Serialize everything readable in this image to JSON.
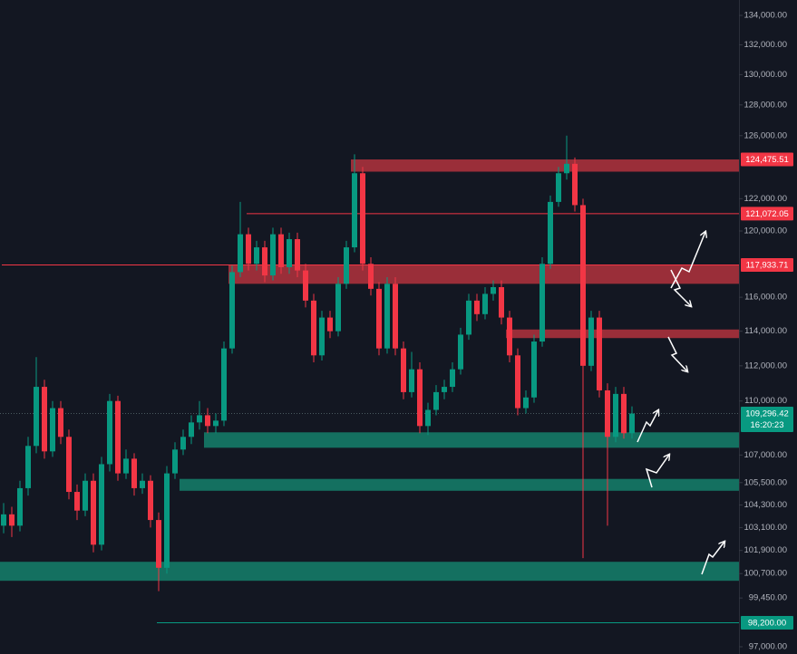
{
  "chart_data": {
    "type": "candlestick",
    "log_scale": true,
    "ylim": [
      96640,
      135060
    ],
    "yticks": [
      {
        "value": 134000,
        "label": "134,000.00"
      },
      {
        "value": 132000,
        "label": "132,000.00"
      },
      {
        "value": 130000,
        "label": "130,000.00"
      },
      {
        "value": 128000,
        "label": "128,000.00"
      },
      {
        "value": 126000,
        "label": "126,000.00"
      },
      {
        "value": 122000,
        "label": "122,000.00"
      },
      {
        "value": 120000,
        "label": "120,000.00"
      },
      {
        "value": 116000,
        "label": "116,000.00"
      },
      {
        "value": 114000,
        "label": "114,000.00"
      },
      {
        "value": 112000,
        "label": "112,000.00"
      },
      {
        "value": 110000,
        "label": "110,000.00"
      },
      {
        "value": 107000,
        "label": "107,000.00"
      },
      {
        "value": 105500,
        "label": "105,500.00"
      },
      {
        "value": 104300,
        "label": "104,300.00"
      },
      {
        "value": 103100,
        "label": "103,100.00"
      },
      {
        "value": 101900,
        "label": "101,900.00"
      },
      {
        "value": 100700,
        "label": "100,700.00"
      },
      {
        "value": 99450,
        "label": "99,450.00"
      },
      {
        "value": 97000,
        "label": "97,000.00"
      }
    ],
    "colors": {
      "up": "#089981",
      "down": "#f23645"
    },
    "ohlc": [
      [
        103200,
        104400,
        102800,
        103800
      ],
      [
        103800,
        104200,
        102600,
        103200
      ],
      [
        103200,
        105600,
        102900,
        105200
      ],
      [
        105200,
        108000,
        104800,
        107500
      ],
      [
        107500,
        112500,
        107100,
        110800
      ],
      [
        110800,
        111200,
        106800,
        107200
      ],
      [
        107200,
        110000,
        106900,
        109600
      ],
      [
        109600,
        110000,
        107600,
        108000
      ],
      [
        108000,
        108400,
        104600,
        105000
      ],
      [
        105000,
        105400,
        103500,
        104000
      ],
      [
        104000,
        106000,
        103700,
        105600
      ],
      [
        105600,
        106000,
        101800,
        102200
      ],
      [
        102200,
        106900,
        101900,
        106500
      ],
      [
        106500,
        110400,
        106100,
        110000
      ],
      [
        110000,
        110300,
        105600,
        106000
      ],
      [
        106000,
        107300,
        105700,
        106800
      ],
      [
        106800,
        107100,
        104800,
        105200
      ],
      [
        105200,
        106000,
        104900,
        105600
      ],
      [
        105600,
        105900,
        103100,
        103500
      ],
      [
        103500,
        103900,
        99800,
        101000
      ],
      [
        101000,
        106400,
        100700,
        106000
      ],
      [
        106000,
        107700,
        105700,
        107300
      ],
      [
        107300,
        108400,
        107000,
        108000
      ],
      [
        108000,
        109200,
        107600,
        108800
      ],
      [
        108800,
        110000,
        108400,
        109200
      ],
      [
        109200,
        109600,
        108200,
        108600
      ],
      [
        108600,
        109300,
        108200,
        108900
      ],
      [
        108900,
        113400,
        108600,
        113000
      ],
      [
        113000,
        117900,
        112700,
        117500
      ],
      [
        117500,
        121800,
        117200,
        119800
      ],
      [
        119800,
        120200,
        117600,
        118000
      ],
      [
        118000,
        119400,
        117600,
        119000
      ],
      [
        119000,
        119400,
        116900,
        117300
      ],
      [
        117300,
        120200,
        117000,
        119800
      ],
      [
        119800,
        120200,
        117400,
        117800
      ],
      [
        117800,
        119900,
        117400,
        119500
      ],
      [
        119500,
        119900,
        117200,
        117600
      ],
      [
        117600,
        118000,
        115400,
        115800
      ],
      [
        115800,
        116200,
        112200,
        112600
      ],
      [
        112600,
        115200,
        112300,
        114800
      ],
      [
        114800,
        115200,
        113600,
        114000
      ],
      [
        114000,
        117200,
        113700,
        116800
      ],
      [
        116800,
        119400,
        116500,
        119000
      ],
      [
        119000,
        124800,
        118700,
        123600
      ],
      [
        123600,
        124000,
        117600,
        118000
      ],
      [
        118000,
        118400,
        116100,
        116500
      ],
      [
        116500,
        116900,
        112600,
        113000
      ],
      [
        113000,
        117200,
        112700,
        116800
      ],
      [
        116800,
        117200,
        112600,
        113000
      ],
      [
        113000,
        113400,
        110100,
        110500
      ],
      [
        110500,
        112800,
        110200,
        111800
      ],
      [
        111800,
        112200,
        108200,
        108600
      ],
      [
        108600,
        109900,
        108100,
        109500
      ],
      [
        109500,
        110900,
        109200,
        110500
      ],
      [
        110500,
        111200,
        110100,
        110800
      ],
      [
        110800,
        112200,
        110500,
        111800
      ],
      [
        111800,
        114200,
        111500,
        113800
      ],
      [
        113800,
        116200,
        113500,
        115800
      ],
      [
        115800,
        116200,
        114600,
        115000
      ],
      [
        115000,
        116600,
        114700,
        116200
      ],
      [
        116200,
        117000,
        115800,
        116600
      ],
      [
        116600,
        117000,
        114400,
        114800
      ],
      [
        114800,
        115200,
        112200,
        112600
      ],
      [
        112600,
        113000,
        109200,
        109600
      ],
      [
        109600,
        110600,
        109300,
        110200
      ],
      [
        110200,
        113800,
        109900,
        113400
      ],
      [
        113400,
        118400,
        113100,
        118000
      ],
      [
        118000,
        122200,
        117700,
        121800
      ],
      [
        121800,
        124000,
        121500,
        123600
      ],
      [
        123600,
        126000,
        123200,
        124200
      ],
      [
        124200,
        124600,
        121200,
        121600
      ],
      [
        121600,
        122000,
        101500,
        112000
      ],
      [
        112000,
        115200,
        111700,
        114800
      ],
      [
        114800,
        115200,
        110200,
        110600
      ],
      [
        110600,
        111000,
        103200,
        108000
      ],
      [
        108000,
        110800,
        107700,
        110400
      ],
      [
        110400,
        110800,
        107900,
        108200
      ],
      [
        108200,
        109700,
        107900,
        109296.42
      ]
    ],
    "zones": [
      {
        "low": 123700,
        "high": 124475.51,
        "start": 43,
        "color": "#b3323d"
      },
      {
        "low": 116800,
        "high": 117933.71,
        "start": 28,
        "color": "#b3323d"
      },
      {
        "low": 113600,
        "high": 114100,
        "start": 62,
        "color": "#b3323d"
      },
      {
        "low": 107400,
        "high": 108250,
        "start": 25,
        "color": "#15806b"
      },
      {
        "low": 105060,
        "high": 105700,
        "start": 22,
        "color": "#15806b"
      },
      {
        "low": 100330,
        "high": 101310,
        "start": 0,
        "color": "#15806b"
      }
    ],
    "lines": [
      {
        "value": 121072.05,
        "start": 30,
        "color": "#f23645"
      },
      {
        "value": 117933.71,
        "start": 0,
        "color": "#f23645"
      },
      {
        "value": 98200,
        "start": 19,
        "color": "#089981"
      }
    ],
    "price_labels": [
      {
        "value": 124475.51,
        "label": "124,475.51",
        "color": "#f23645"
      },
      {
        "value": 121072.05,
        "label": "121,072.05",
        "color": "#f23645"
      },
      {
        "value": 117933.71,
        "label": "117,933.71",
        "color": "#f23645"
      },
      {
        "value": 109296.42,
        "label": "109,296.42",
        "color": "#089981"
      },
      {
        "value": 98200,
        "label": "98,200.00",
        "color": "#089981"
      }
    ],
    "countdown": "16:20:23"
  }
}
